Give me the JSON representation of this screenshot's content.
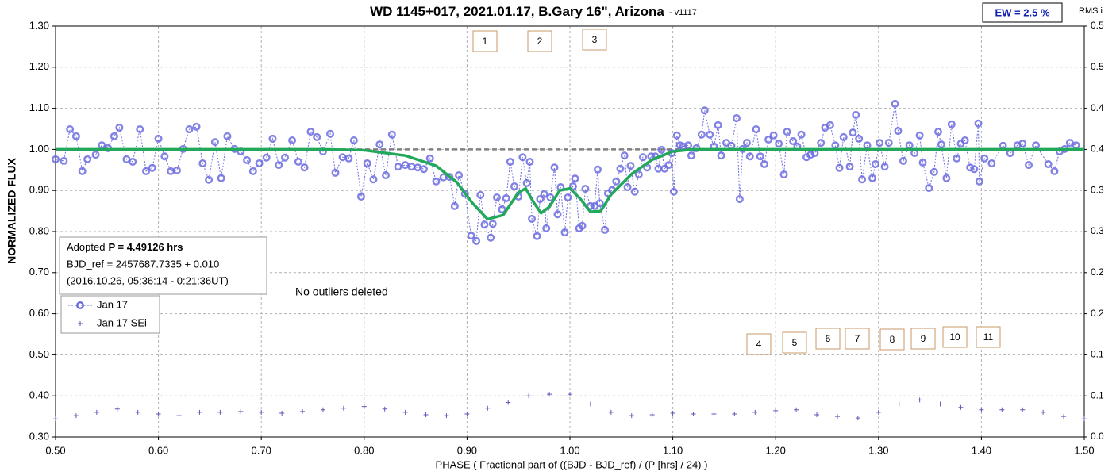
{
  "chart_data": {
    "type": "scatter",
    "title": "WD 1145+017, 2021.01.17, B.Gary 16\", Arizona",
    "title_suffix": "- v1117",
    "ew_label": "EW = 2.5 %",
    "y2label": "RMS i",
    "xlabel": "PHASE ( Fractional part of ((BJD - BJD_ref) / (P [hrs] / 24) )",
    "ylabel": "NORMALIZED FLUX",
    "info": {
      "lead": "Adopted",
      "period": "P = 4.49126 hrs",
      "line2": "BJD_ref = 2457687.7335 + 0.010",
      "line3": "(2016.10.26, 05:36:14 - 0:21:36UT)"
    },
    "note": "No outliers deleted",
    "event_labels": [
      "1",
      "2",
      "3",
      "4",
      "5",
      "6",
      "7",
      "8",
      "9",
      "10",
      "11"
    ],
    "xlim": [
      0.5,
      1.5
    ],
    "ylim": [
      0.3,
      1.3
    ],
    "y2lim": [
      0,
      0.5
    ],
    "grid": true,
    "xticks": [
      {
        "value": 0.5,
        "label": "0.50"
      },
      {
        "value": 0.6,
        "label": "0.60"
      },
      {
        "value": 0.7,
        "label": "0.70"
      },
      {
        "value": 0.8,
        "label": "0.80"
      },
      {
        "value": 0.9,
        "label": "0.90"
      },
      {
        "value": 1.0,
        "label": "1.00"
      },
      {
        "value": 1.1,
        "label": "1.10"
      },
      {
        "value": 1.2,
        "label": "1.20"
      },
      {
        "value": 1.3,
        "label": "1.30"
      },
      {
        "value": 1.4,
        "label": "1.40"
      },
      {
        "value": 1.5,
        "label": "1.50"
      }
    ],
    "yticks": [
      {
        "value": 0.3,
        "label": "0.30"
      },
      {
        "value": 0.4,
        "label": "0.40"
      },
      {
        "value": 0.5,
        "label": "0.50"
      },
      {
        "value": 0.6,
        "label": "0.60"
      },
      {
        "value": 0.7,
        "label": "0.70"
      },
      {
        "value": 0.8,
        "label": "0.80"
      },
      {
        "value": 0.9,
        "label": "0.90"
      },
      {
        "value": 1.0,
        "label": "1.00"
      },
      {
        "value": 1.1,
        "label": "1.10"
      },
      {
        "value": 1.2,
        "label": "1.20"
      },
      {
        "value": 1.3,
        "label": "1.30"
      }
    ],
    "y2ticks": [
      {
        "value": 0,
        "label": "0.0"
      },
      {
        "value": 0.05,
        "label": "0.1"
      },
      0.1,
      {
        "value": 0.15,
        "label": "0.2"
      },
      0.2,
      {
        "value": 0.25,
        "label": "0.3"
      },
      0.3,
      {
        "value": 0.35,
        "label": "0.4"
      },
      0.4,
      {
        "value": 0.45,
        "label": "0.5"
      },
      0.5
    ],
    "reference_line": {
      "value": 1.0,
      "color": "#808080"
    },
    "model": {
      "color": "#22a85a",
      "x": [
        0.5,
        0.76,
        0.8,
        0.84,
        0.87,
        0.89,
        0.905,
        0.92,
        0.935,
        0.95,
        0.957,
        0.965,
        0.972,
        0.98,
        0.99,
        1.0,
        1.01,
        1.02,
        1.03,
        1.04,
        1.06,
        1.08,
        1.1,
        1.12,
        1.5
      ],
      "values": [
        1.0,
        1.0,
        0.998,
        0.985,
        0.96,
        0.92,
        0.87,
        0.83,
        0.84,
        0.895,
        0.905,
        0.87,
        0.845,
        0.86,
        0.9,
        0.905,
        0.88,
        0.848,
        0.85,
        0.89,
        0.94,
        0.975,
        0.995,
        1.0,
        1.0
      ]
    },
    "series": [
      {
        "name": "Jan 17",
        "color": "#6c6ce0",
        "marker": "circle",
        "x": [
          0.5,
          0.508,
          0.514,
          0.52,
          0.526,
          0.531,
          0.539,
          0.545,
          0.551,
          0.557,
          0.562,
          0.569,
          0.575,
          0.582,
          0.588,
          0.594,
          0.6,
          0.606,
          0.612,
          0.618,
          0.624,
          0.63,
          0.637,
          0.643,
          0.649,
          0.655,
          0.661,
          0.667,
          0.674,
          0.68,
          0.686,
          0.692,
          0.698,
          0.705,
          0.711,
          0.717,
          0.723,
          0.73,
          0.736,
          0.742,
          0.748,
          0.754,
          0.76,
          0.767,
          0.772,
          0.779,
          0.785,
          0.79,
          0.797,
          0.803,
          0.809,
          0.815,
          0.821,
          0.827,
          0.833,
          0.84,
          0.846,
          0.852,
          0.858,
          0.864,
          0.87,
          0.877,
          0.883,
          0.888,
          0.892,
          0.898,
          0.904,
          0.909,
          0.913,
          0.917,
          0.923,
          0.925,
          0.929,
          0.934,
          0.938,
          0.942,
          0.946,
          0.95,
          0.954,
          0.958,
          0.961,
          0.963,
          0.968,
          0.971,
          0.975,
          0.977,
          0.981,
          0.985,
          0.988,
          0.991,
          0.995,
          0.998,
          1.003,
          1.005,
          1.009,
          1.012,
          1.015,
          1.02,
          1.024,
          1.027,
          1.029,
          1.034,
          1.037,
          1.041,
          1.045,
          1.049,
          1.053,
          1.056,
          1.059,
          1.063,
          1.067,
          1.071,
          1.075,
          1.079,
          1.083,
          1.086,
          1.089,
          1.092,
          1.096,
          1.099,
          1.101,
          1.104,
          1.107,
          1.11,
          1.115,
          1.118,
          1.123,
          1.128,
          1.131,
          1.136,
          1.14,
          1.144,
          1.147,
          1.152,
          1.157,
          1.162,
          1.165,
          1.168,
          1.172,
          1.175,
          1.181,
          1.185,
          1.189,
          1.193,
          1.198,
          1.203,
          1.208,
          1.211,
          1.217,
          1.221,
          1.225,
          1.23,
          1.234,
          1.238,
          1.244,
          1.248,
          1.253,
          1.258,
          1.262,
          1.266,
          1.272,
          1.275,
          1.278,
          1.281,
          1.284,
          1.289,
          1.294,
          1.297,
          1.301,
          1.306,
          1.31,
          1.316,
          1.319,
          1.324,
          1.33,
          1.335,
          1.34,
          1.343,
          1.349,
          1.354,
          1.358,
          1.361,
          1.366,
          1.371,
          1.376,
          1.38,
          1.384,
          1.389,
          1.393,
          1.397,
          1.398,
          1.403,
          1.41,
          1.421,
          1.428,
          1.435,
          1.44,
          1.446,
          1.453,
          1.465,
          1.471,
          1.476,
          1.481,
          1.486,
          1.492
        ],
        "values": [
          0.976,
          0.972,
          1.049,
          1.032,
          0.947,
          0.976,
          0.987,
          1.01,
          1.003,
          1.032,
          1.053,
          0.976,
          0.97,
          1.049,
          0.947,
          0.955,
          1.026,
          0.983,
          0.947,
          0.949,
          1.001,
          1.049,
          1.055,
          0.966,
          0.926,
          1.018,
          0.93,
          1.032,
          1.001,
          0.995,
          0.974,
          0.947,
          0.966,
          0.98,
          1.026,
          0.962,
          0.98,
          1.022,
          0.97,
          0.956,
          1.043,
          1.03,
          0.995,
          1.038,
          0.943,
          0.981,
          0.978,
          1.022,
          0.885,
          0.966,
          0.927,
          1.012,
          0.937,
          1.036,
          0.958,
          0.962,
          0.958,
          0.956,
          0.952,
          0.978,
          0.922,
          0.932,
          0.933,
          0.862,
          0.937,
          0.892,
          0.79,
          0.777,
          0.889,
          0.817,
          0.785,
          0.819,
          0.883,
          0.854,
          0.881,
          0.97,
          0.91,
          0.885,
          0.981,
          0.918,
          0.97,
          0.831,
          0.789,
          0.879,
          0.891,
          0.808,
          0.883,
          0.956,
          0.842,
          0.908,
          0.798,
          0.883,
          0.91,
          0.929,
          0.808,
          0.814,
          0.904,
          0.862,
          0.862,
          0.951,
          0.869,
          0.804,
          0.893,
          0.901,
          0.922,
          0.953,
          0.985,
          0.908,
          0.96,
          0.897,
          0.939,
          0.981,
          0.956,
          0.983,
          0.983,
          0.953,
          0.999,
          0.953,
          0.962,
          0.991,
          0.897,
          1.034,
          1.01,
          1.007,
          1.01,
          0.985,
          1.003,
          1.036,
          1.095,
          1.036,
          1.007,
          1.059,
          0.985,
          1.016,
          1.009,
          1.076,
          0.879,
          1.001,
          1.016,
          0.983,
          1.049,
          0.983,
          0.964,
          1.024,
          1.034,
          1.014,
          0.939,
          1.043,
          1.02,
          1.007,
          1.036,
          0.981,
          0.987,
          0.991,
          1.016,
          1.053,
          1.059,
          1.01,
          0.955,
          1.03,
          0.958,
          1.041,
          1.084,
          1.026,
          0.927,
          1.01,
          0.93,
          0.964,
          1.016,
          0.958,
          1.016,
          1.111,
          1.045,
          0.972,
          1.01,
          0.991,
          1.034,
          0.968,
          0.906,
          0.945,
          1.043,
          1.012,
          0.93,
          1.061,
          0.978,
          1.014,
          1.022,
          0.956,
          0.952,
          1.063,
          0.922,
          0.978,
          0.966,
          1.009,
          0.991,
          1.01,
          1.014,
          0.962,
          1.01,
          0.964,
          0.947,
          0.995,
          1.001,
          1.016,
          1.01
        ]
      },
      {
        "name": "Jan 17 SEi",
        "color": "#5a5ab8",
        "marker": "plus",
        "axis": "y2",
        "x": [
          0.5,
          0.52,
          0.54,
          0.56,
          0.58,
          0.6,
          0.62,
          0.64,
          0.66,
          0.68,
          0.7,
          0.72,
          0.74,
          0.76,
          0.78,
          0.8,
          0.82,
          0.84,
          0.86,
          0.88,
          0.9,
          0.92,
          0.94,
          0.96,
          0.98,
          1.0,
          1.02,
          1.04,
          1.06,
          1.08,
          1.1,
          1.12,
          1.14,
          1.16,
          1.18,
          1.2,
          1.22,
          1.24,
          1.26,
          1.28,
          1.3,
          1.32,
          1.34,
          1.36,
          1.38,
          1.4,
          1.42,
          1.44,
          1.46,
          1.48,
          1.5
        ],
        "values": [
          0.022,
          0.026,
          0.03,
          0.034,
          0.03,
          0.028,
          0.026,
          0.03,
          0.03,
          0.031,
          0.03,
          0.029,
          0.031,
          0.033,
          0.035,
          0.037,
          0.034,
          0.03,
          0.027,
          0.026,
          0.028,
          0.035,
          0.042,
          0.05,
          0.052,
          0.052,
          0.04,
          0.03,
          0.026,
          0.027,
          0.029,
          0.028,
          0.028,
          0.028,
          0.03,
          0.032,
          0.033,
          0.027,
          0.025,
          0.023,
          0.03,
          0.04,
          0.045,
          0.04,
          0.036,
          0.033,
          0.033,
          0.033,
          0.03,
          0.025,
          0.022
        ]
      }
    ]
  }
}
